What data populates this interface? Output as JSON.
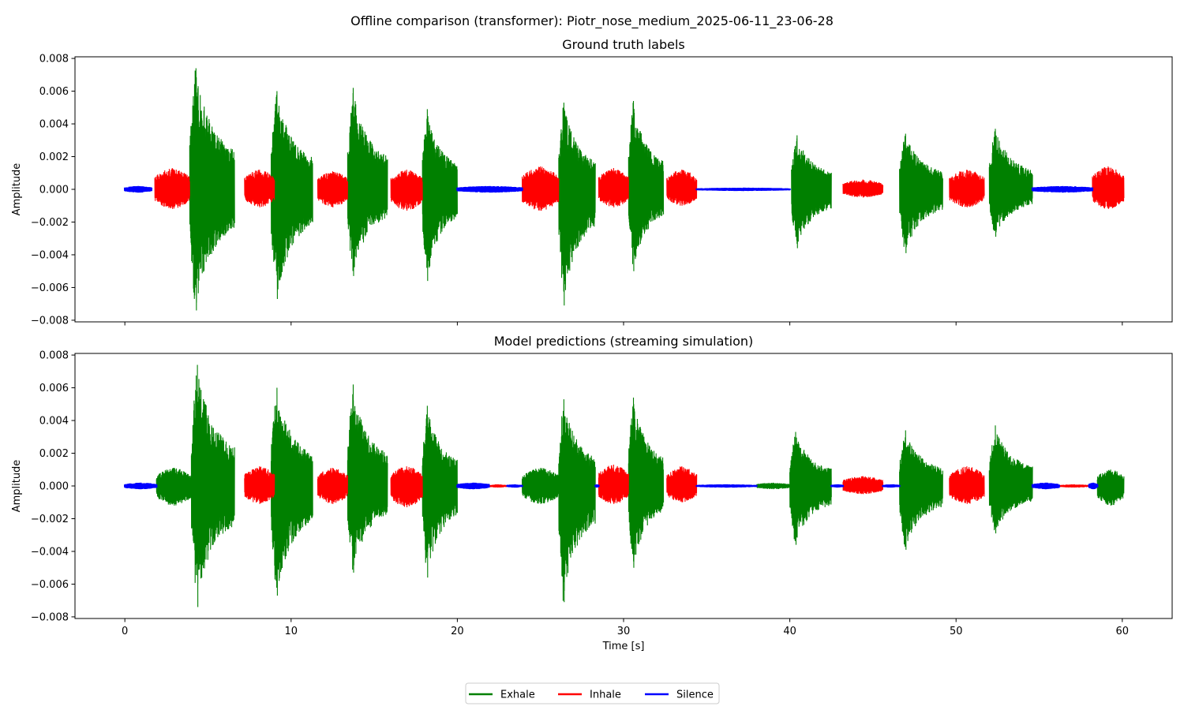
{
  "figure": {
    "suptitle": "Offline comparison (transformer): Piotr_nose_medium_2025-06-11_23-06-28"
  },
  "legend": {
    "placement": "bottom-center",
    "entries": [
      {
        "label": "Exhale",
        "color": "#008000"
      },
      {
        "label": "Inhale",
        "color": "#ff0000"
      },
      {
        "label": "Silence",
        "color": "#0000ff"
      }
    ]
  },
  "colors": {
    "Exhale": "#008000",
    "Inhale": "#ff0000",
    "Silence": "#0000ff"
  },
  "chart_data": [
    {
      "type": "line",
      "title": "Ground truth labels",
      "xlabel": "",
      "ylabel": "Amplitude",
      "xlim": [
        -3.0,
        63.0
      ],
      "ylim": [
        -0.0081,
        0.0081
      ],
      "xticks": [
        0,
        10,
        20,
        30,
        40,
        50,
        60
      ],
      "xtick_labels_shown": false,
      "yticks": [
        -0.008,
        -0.006,
        -0.004,
        -0.002,
        0.0,
        0.002,
        0.004,
        0.006,
        0.008
      ],
      "ytick_labels": [
        "−0.008",
        "−0.006",
        "−0.004",
        "−0.002",
        "0.000",
        "0.002",
        "0.004",
        "0.006",
        "0.008"
      ],
      "series": [
        {
          "name": "Exhale",
          "segments": [
            {
              "start": 3.9,
              "end": 6.6,
              "peak": 0.0074,
              "trough": -0.0074
            },
            {
              "start": 8.8,
              "end": 11.3,
              "peak": 0.006,
              "trough": -0.0067
            },
            {
              "start": 13.4,
              "end": 15.8,
              "peak": 0.0062,
              "trough": -0.0053
            },
            {
              "start": 17.9,
              "end": 20.0,
              "peak": 0.0049,
              "trough": -0.0056
            },
            {
              "start": 26.1,
              "end": 28.3,
              "peak": 0.0053,
              "trough": -0.0071
            },
            {
              "start": 30.3,
              "end": 32.4,
              "peak": 0.0054,
              "trough": -0.005
            },
            {
              "start": 40.1,
              "end": 42.5,
              "peak": 0.0033,
              "trough": -0.0036
            },
            {
              "start": 46.6,
              "end": 49.2,
              "peak": 0.0034,
              "trough": -0.0039
            },
            {
              "start": 52.0,
              "end": 54.6,
              "peak": 0.0037,
              "trough": -0.0029
            }
          ]
        },
        {
          "name": "Inhale",
          "segments": [
            {
              "start": 1.8,
              "end": 3.9,
              "peak": 0.0013,
              "trough": -0.0012
            },
            {
              "start": 7.2,
              "end": 9.0,
              "peak": 0.0012,
              "trough": -0.0011
            },
            {
              "start": 11.6,
              "end": 13.4,
              "peak": 0.0011,
              "trough": -0.0011
            },
            {
              "start": 16.0,
              "end": 17.9,
              "peak": 0.0012,
              "trough": -0.0013
            },
            {
              "start": 23.9,
              "end": 26.1,
              "peak": 0.0014,
              "trough": -0.0013
            },
            {
              "start": 28.5,
              "end": 30.3,
              "peak": 0.0013,
              "trough": -0.0011
            },
            {
              "start": 32.6,
              "end": 34.4,
              "peak": 0.0012,
              "trough": -0.001
            },
            {
              "start": 43.2,
              "end": 45.6,
              "peak": 0.0006,
              "trough": -0.0005
            },
            {
              "start": 49.6,
              "end": 51.7,
              "peak": 0.0012,
              "trough": -0.0011
            },
            {
              "start": 58.2,
              "end": 60.1,
              "peak": 0.0014,
              "trough": -0.0012
            }
          ]
        },
        {
          "name": "Silence",
          "segments": [
            {
              "start": 0.0,
              "end": 1.6,
              "peak": 0.0002,
              "trough": -0.0002
            },
            {
              "start": 20.0,
              "end": 23.9,
              "peak": 0.0002,
              "trough": -0.0002
            },
            {
              "start": 34.4,
              "end": 40.0,
              "peak": 0.0001,
              "trough": -0.0001
            },
            {
              "start": 54.6,
              "end": 58.2,
              "peak": 0.0002,
              "trough": -0.0002
            }
          ]
        }
      ]
    },
    {
      "type": "line",
      "title": "Model predictions (streaming simulation)",
      "xlabel": "Time [s]",
      "ylabel": "Amplitude",
      "xlim": [
        -3.0,
        63.0
      ],
      "ylim": [
        -0.0081,
        0.0081
      ],
      "xticks": [
        0,
        10,
        20,
        30,
        40,
        50,
        60
      ],
      "xtick_labels": [
        "0",
        "10",
        "20",
        "30",
        "40",
        "50",
        "60"
      ],
      "yticks": [
        -0.008,
        -0.006,
        -0.004,
        -0.002,
        0.0,
        0.002,
        0.004,
        0.006,
        0.008
      ],
      "ytick_labels": [
        "−0.008",
        "−0.006",
        "−0.004",
        "−0.002",
        "0.000",
        "0.002",
        "0.004",
        "0.006",
        "0.008"
      ],
      "series": [
        {
          "name": "Exhale",
          "segments": [
            {
              "start": 1.9,
              "end": 4.0,
              "peak": 0.0011,
              "trough": -0.0012
            },
            {
              "start": 4.0,
              "end": 6.6,
              "peak": 0.0074,
              "trough": -0.0074
            },
            {
              "start": 8.8,
              "end": 11.3,
              "peak": 0.006,
              "trough": -0.0067
            },
            {
              "start": 13.4,
              "end": 15.8,
              "peak": 0.0062,
              "trough": -0.0053
            },
            {
              "start": 17.9,
              "end": 20.0,
              "peak": 0.0049,
              "trough": -0.0056
            },
            {
              "start": 23.9,
              "end": 26.1,
              "peak": 0.0011,
              "trough": -0.0011
            },
            {
              "start": 26.1,
              "end": 28.3,
              "peak": 0.0053,
              "trough": -0.0071
            },
            {
              "start": 30.3,
              "end": 32.4,
              "peak": 0.0054,
              "trough": -0.005
            },
            {
              "start": 38.0,
              "end": 40.0,
              "peak": 0.0002,
              "trough": -0.0002
            },
            {
              "start": 40.0,
              "end": 42.5,
              "peak": 0.0033,
              "trough": -0.0036
            },
            {
              "start": 46.6,
              "end": 49.2,
              "peak": 0.0034,
              "trough": -0.0039
            },
            {
              "start": 52.0,
              "end": 54.6,
              "peak": 0.0037,
              "trough": -0.0029
            },
            {
              "start": 58.5,
              "end": 60.1,
              "peak": 0.001,
              "trough": -0.0012
            }
          ]
        },
        {
          "name": "Inhale",
          "segments": [
            {
              "start": 7.2,
              "end": 9.0,
              "peak": 0.0012,
              "trough": -0.0011
            },
            {
              "start": 11.6,
              "end": 13.4,
              "peak": 0.0011,
              "trough": -0.0011
            },
            {
              "start": 16.0,
              "end": 17.9,
              "peak": 0.0012,
              "trough": -0.0013
            },
            {
              "start": 21.9,
              "end": 23.0,
              "peak": 0.0001,
              "trough": -0.0001
            },
            {
              "start": 28.5,
              "end": 30.3,
              "peak": 0.0013,
              "trough": -0.0011
            },
            {
              "start": 32.6,
              "end": 34.4,
              "peak": 0.0012,
              "trough": -0.001
            },
            {
              "start": 43.2,
              "end": 45.6,
              "peak": 0.0006,
              "trough": -0.0005
            },
            {
              "start": 49.6,
              "end": 51.7,
              "peak": 0.0012,
              "trough": -0.0011
            },
            {
              "start": 56.2,
              "end": 58.0,
              "peak": 0.0001,
              "trough": -0.0001
            }
          ]
        },
        {
          "name": "Silence",
          "segments": [
            {
              "start": 0.0,
              "end": 1.9,
              "peak": 0.0002,
              "trough": -0.0002
            },
            {
              "start": 20.0,
              "end": 21.9,
              "peak": 0.0002,
              "trough": -0.0002
            },
            {
              "start": 23.0,
              "end": 23.9,
              "peak": 0.0001,
              "trough": -0.0001
            },
            {
              "start": 28.3,
              "end": 28.5,
              "peak": 0.0001,
              "trough": -0.0001
            },
            {
              "start": 34.4,
              "end": 38.0,
              "peak": 0.0001,
              "trough": -0.0001
            },
            {
              "start": 42.5,
              "end": 43.2,
              "peak": 0.0001,
              "trough": -0.0001
            },
            {
              "start": 45.6,
              "end": 46.6,
              "peak": 0.0001,
              "trough": -0.0001
            },
            {
              "start": 54.6,
              "end": 56.2,
              "peak": 0.0002,
              "trough": -0.0002
            },
            {
              "start": 58.0,
              "end": 58.5,
              "peak": 0.0002,
              "trough": -0.0002
            }
          ]
        }
      ]
    }
  ]
}
